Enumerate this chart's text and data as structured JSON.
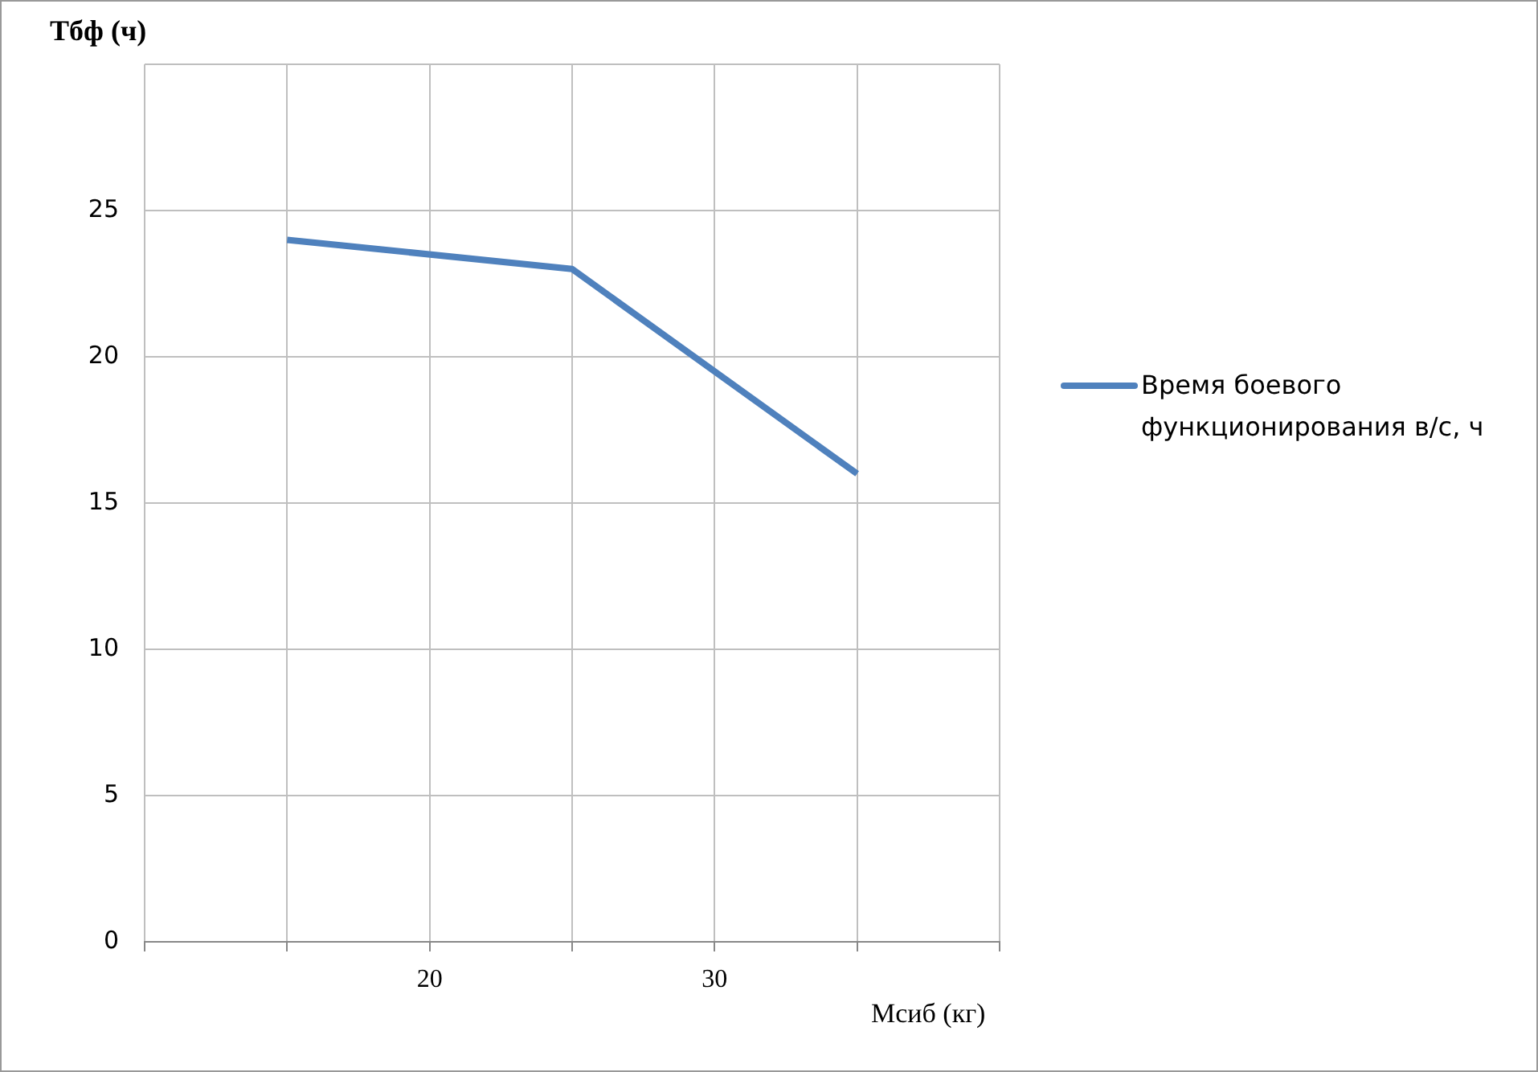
{
  "chart_data": {
    "type": "line",
    "xlabel": "Мсиб (кг)",
    "ylabel": "Тбф (ч)",
    "x": [
      15,
      25,
      35
    ],
    "series": [
      {
        "name": "Время боевого функционирования в/с, ч",
        "color": "#4f81bd",
        "values": [
          24,
          23,
          16
        ]
      }
    ],
    "xlim": [
      10,
      40
    ],
    "xticks": [
      {
        "value": 10,
        "label": null
      },
      {
        "value": 15,
        "label": null
      },
      20,
      {
        "value": 25,
        "label": null
      },
      30,
      {
        "value": 35,
        "label": null
      },
      {
        "value": 40,
        "label": null
      }
    ],
    "ylim": [
      0,
      30
    ],
    "yticks": [
      0,
      5,
      10,
      15,
      20,
      25,
      {
        "value": 30,
        "label": null
      }
    ],
    "grid": true,
    "legend": "right",
    "marker": "none"
  }
}
